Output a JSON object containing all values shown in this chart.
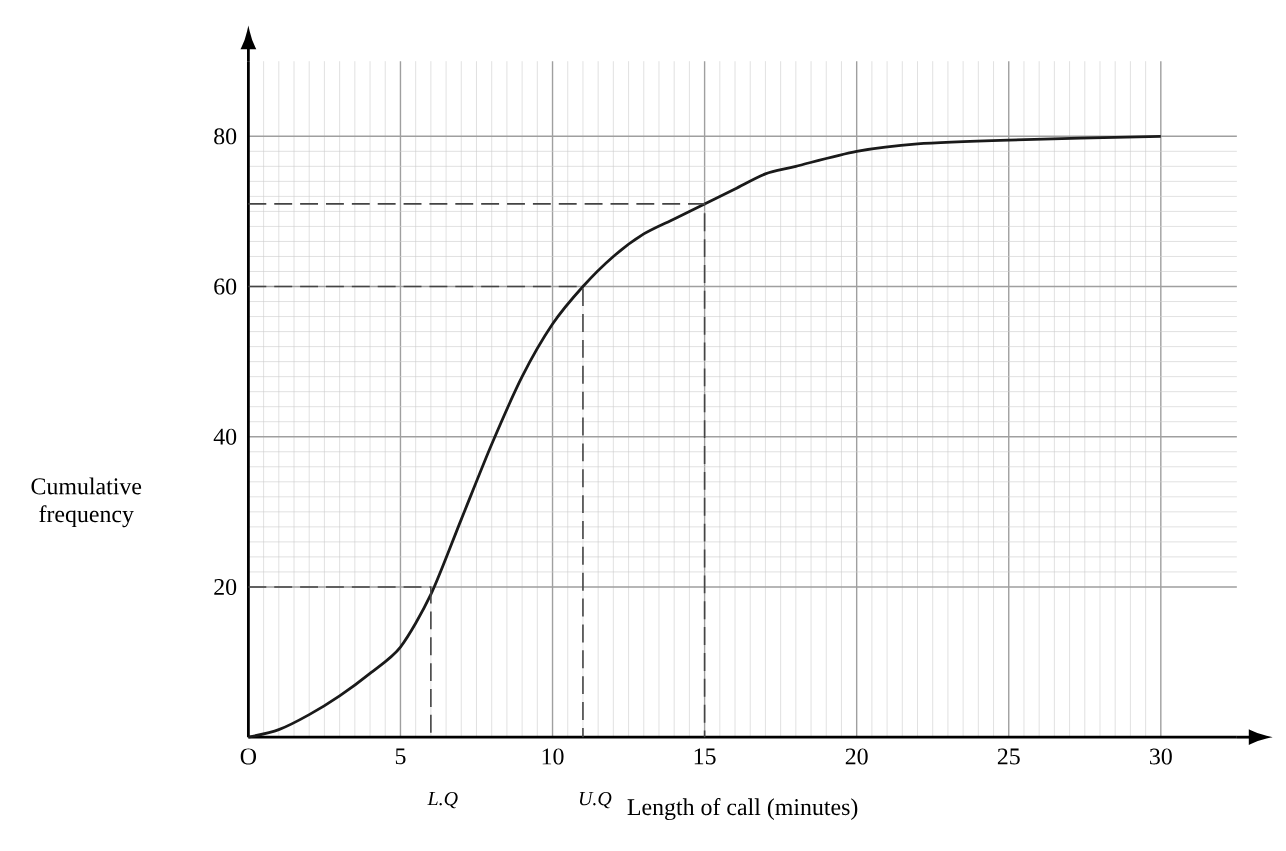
{
  "chart_data": {
    "type": "line",
    "xlabel": "Length of call (minutes)",
    "ylabel": "Cumulative frequency",
    "xlim": [
      0,
      32.5
    ],
    "ylim": [
      0,
      90
    ],
    "xticks": [
      {
        "value": 0,
        "label": "O"
      },
      5,
      10,
      15,
      20,
      25,
      30
    ],
    "yticks": [
      20,
      40,
      60,
      80
    ],
    "grid": true,
    "marker": "none",
    "series": [
      {
        "color": "#1a1a1a",
        "line_style": "solid",
        "x": [
          0,
          1,
          2,
          3,
          4,
          5,
          6,
          7,
          8,
          9,
          10,
          11,
          12,
          13,
          14,
          15,
          16,
          17,
          18,
          20,
          22,
          25,
          30
        ],
        "values": [
          0,
          1,
          3,
          5.5,
          8.5,
          12,
          19,
          29,
          39,
          48,
          55,
          60,
          64,
          67,
          69,
          71,
          73,
          75,
          76,
          78,
          79,
          79.5,
          80
        ]
      },
      {
        "color": "#444444",
        "line_style": "dashed",
        "x": [
          0,
          6,
          6
        ],
        "values": [
          20,
          20,
          0
        ]
      },
      {
        "color": "#444444",
        "line_style": "dashed",
        "x": [
          0,
          11,
          11
        ],
        "values": [
          60,
          60,
          0
        ]
      },
      {
        "color": "#444444",
        "line_style": "dashed",
        "x": [
          0,
          15,
          15
        ],
        "values": [
          71,
          71,
          0
        ]
      }
    ],
    "annotations": [
      "L.Q",
      "U.Q"
    ]
  }
}
